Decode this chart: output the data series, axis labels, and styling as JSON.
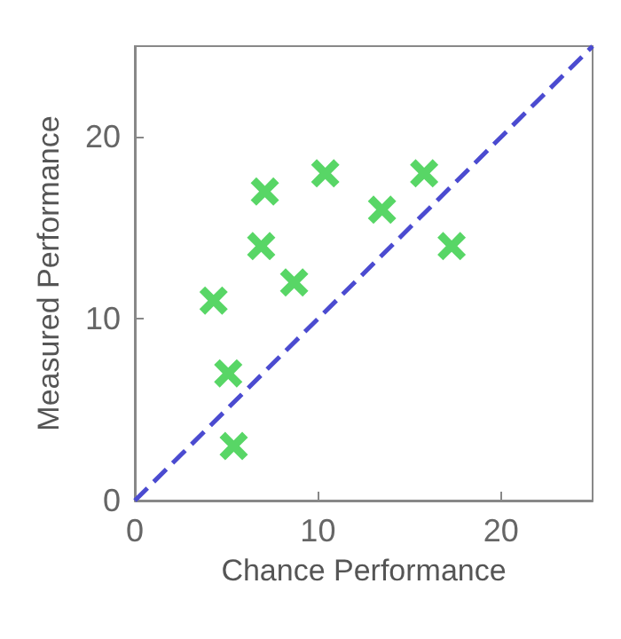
{
  "chart_data": {
    "type": "scatter",
    "xlabel": "Chance Performance",
    "ylabel": "Measured Performance",
    "xlim": [
      0,
      25
    ],
    "ylim": [
      0,
      25
    ],
    "xticks": [
      0,
      10,
      20
    ],
    "yticks": [
      0,
      10,
      20
    ],
    "grid": false,
    "series": [
      {
        "color": "#2ecc40",
        "marker": "cross",
        "x": [
          4.3,
          5.1,
          5.4,
          7.1,
          6.9,
          8.7,
          10.4,
          13.5,
          15.8,
          17.3
        ],
        "values": [
          11,
          7,
          3,
          17,
          14,
          12,
          18,
          16,
          18,
          14
        ]
      },
      {
        "type": "line",
        "color": "#4b4bd0",
        "line_style": "dashed",
        "marker": "none",
        "x": [
          0,
          25
        ],
        "values": [
          0,
          25
        ]
      }
    ]
  }
}
